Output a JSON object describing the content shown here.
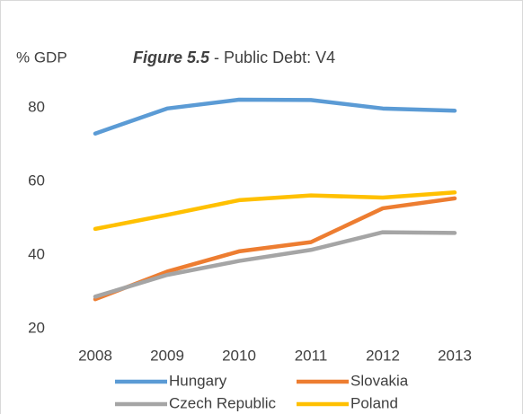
{
  "chart_data": {
    "type": "line",
    "title_parts": [
      "Figure 5.5",
      "- Public Debt: V4"
    ],
    "y_label": "% GDP",
    "categories": [
      "2008",
      "2009",
      "2010",
      "2011",
      "2012",
      "2013"
    ],
    "series": [
      {
        "name": "Hungary",
        "color": "#5b9bd5",
        "values": [
          73,
          79.8,
          82.2,
          82.1,
          79.8,
          79.2
        ]
      },
      {
        "name": "Slovakia",
        "color": "#ed7d31",
        "values": [
          28,
          35.5,
          41,
          43.5,
          52.7,
          55.4
        ]
      },
      {
        "name": "Czech Republic",
        "color": "#a5a5a5",
        "values": [
          28.7,
          34.6,
          38.4,
          41.4,
          46.2,
          46
        ]
      },
      {
        "name": "Poland",
        "color": "#ffc000",
        "values": [
          47.1,
          50.9,
          54.9,
          56.2,
          55.6,
          57
        ]
      }
    ],
    "ylim": [
      20,
      90
    ],
    "yticks": [
      20,
      40,
      60,
      80
    ],
    "grid": false,
    "legend": "bottom"
  }
}
